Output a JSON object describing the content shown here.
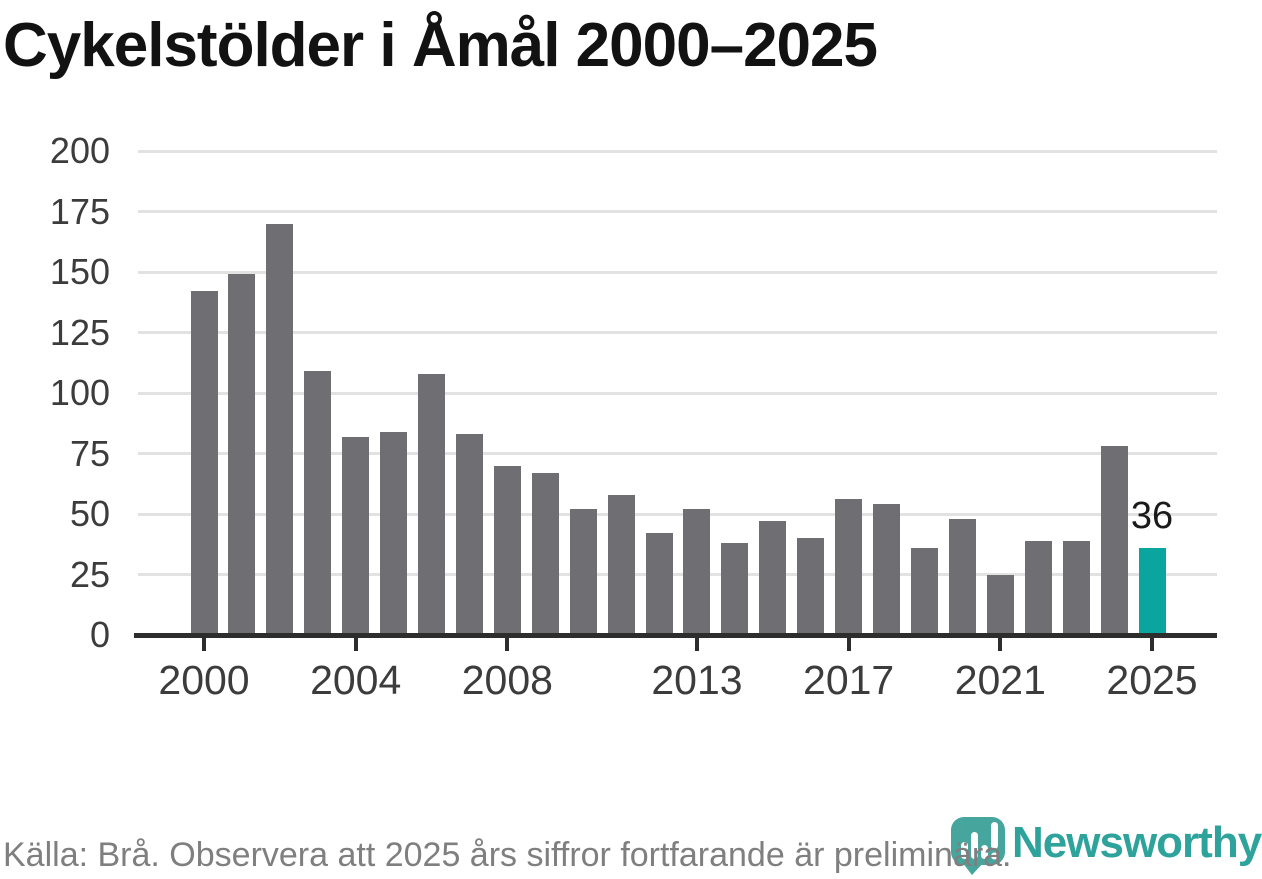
{
  "title": "Cykelstölder i Åmål 2000–2025",
  "footer": {
    "source_note": "Källa: Brå. Observera att 2025 års siffror fortfarande är preliminära.",
    "brand": "Newsworthy"
  },
  "colors": {
    "bar_gray": "#6f6e73",
    "bar_highlight_teal": "#0ba5a0",
    "gridline": "#e2e2e2",
    "axis": "#2d2d2d",
    "tick_label": "#3c3c3c",
    "title_text": "#121212",
    "footer_text": "#7f7f7f",
    "logo_icon_teal": "#46a69e",
    "brand_text_teal": "#2ea39b"
  },
  "chart_data": {
    "type": "bar",
    "title": "Cykelstölder i Åmål 2000–2025",
    "x": [
      2000,
      2001,
      2002,
      2003,
      2004,
      2005,
      2006,
      2007,
      2008,
      2009,
      2010,
      2011,
      2012,
      2013,
      2014,
      2015,
      2016,
      2017,
      2018,
      2019,
      2020,
      2021,
      2022,
      2023,
      2024,
      2025
    ],
    "values": [
      142,
      149,
      170,
      109,
      82,
      84,
      108,
      83,
      70,
      67,
      52,
      58,
      42,
      52,
      38,
      47,
      40,
      56,
      54,
      36,
      48,
      25,
      39,
      39,
      78,
      36
    ],
    "highlight_index": 25,
    "highlight_label": "36",
    "xlabel": "",
    "ylabel": "",
    "ylim": [
      0,
      200
    ],
    "yticks": [
      0,
      25,
      50,
      75,
      100,
      125,
      150,
      175,
      200
    ],
    "xtick_labels": [
      2000,
      2004,
      2008,
      2013,
      2017,
      2021,
      2025
    ],
    "grid": true,
    "legend": "none"
  }
}
